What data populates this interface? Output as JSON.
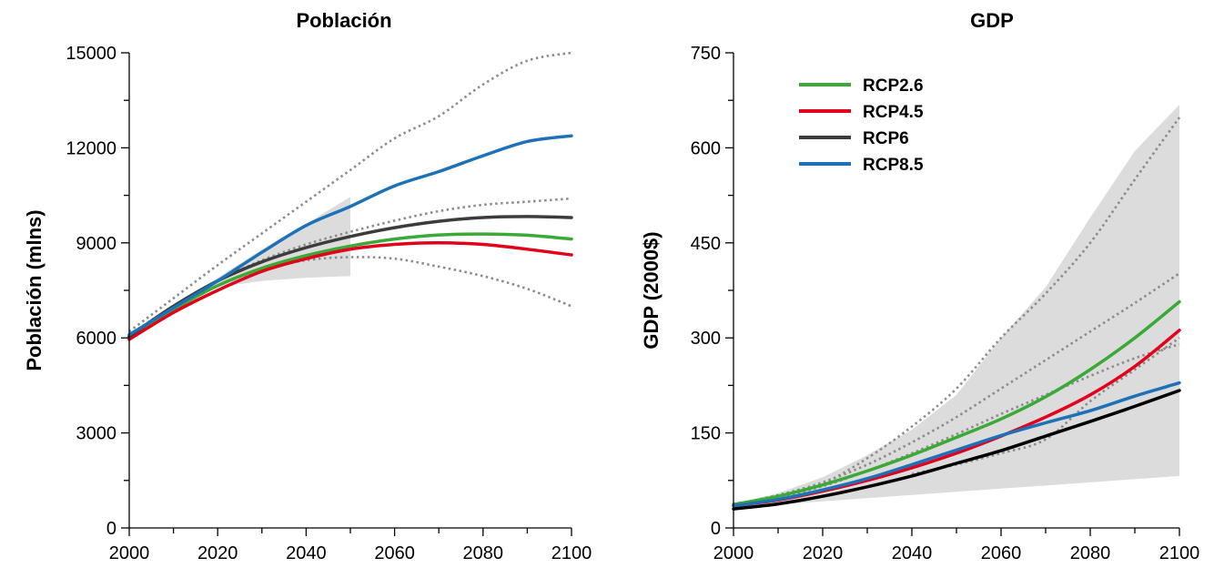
{
  "charts": [
    {
      "title": "Población",
      "ylabel": "Población (mlns)",
      "xticks": [
        2000,
        2020,
        2040,
        2060,
        2080,
        2100
      ],
      "yticks": [
        0,
        3000,
        6000,
        9000,
        12000,
        15000
      ],
      "xticks_label": [
        "2000",
        "2020",
        "2040",
        "2060",
        "2080",
        "2100"
      ],
      "yticks_label": [
        "0",
        "3000",
        "6000",
        "9000",
        "12000",
        "15000"
      ]
    },
    {
      "title": "GDP",
      "ylabel": "GDP (2000$)",
      "xticks": [
        2000,
        2020,
        2040,
        2060,
        2080,
        2100
      ],
      "yticks": [
        0,
        150,
        300,
        450,
        600,
        750
      ],
      "xticks_label": [
        "2000",
        "2020",
        "2040",
        "2060",
        "2080",
        "2100"
      ],
      "yticks_label": [
        "0",
        "150",
        "300",
        "450",
        "600",
        "750"
      ]
    }
  ],
  "legend": [
    {
      "label": "RCP2.6",
      "color": "#3aa935"
    },
    {
      "label": "RCP4.5",
      "color": "#e2001a"
    },
    {
      "label": "RCP6",
      "color": "#3c3c3b"
    },
    {
      "label": "RCP8.5",
      "color": "#1d71b8"
    }
  ],
  "chart_data": [
    {
      "type": "line",
      "title": "Población",
      "xlabel": "",
      "ylabel": "Población (mlns)",
      "xlim": [
        2000,
        2100
      ],
      "ylim": [
        0,
        15000
      ],
      "grid": false,
      "x": [
        2000,
        2010,
        2020,
        2030,
        2040,
        2050,
        2060,
        2070,
        2080,
        2090,
        2100
      ],
      "series": [
        {
          "name": "RCP2.6",
          "color": "#3aa935",
          "values": [
            6050,
            6900,
            7650,
            8200,
            8600,
            8900,
            9120,
            9250,
            9280,
            9240,
            9120
          ]
        },
        {
          "name": "RCP4.5",
          "color": "#e2001a",
          "values": [
            5950,
            6800,
            7500,
            8100,
            8500,
            8800,
            8950,
            9000,
            8950,
            8800,
            8620
          ]
        },
        {
          "name": "RCP6",
          "color": "#3c3c3b",
          "values": [
            6050,
            7000,
            7800,
            8400,
            8850,
            9200,
            9480,
            9680,
            9800,
            9830,
            9800
          ]
        },
        {
          "name": "RCP8.5",
          "color": "#1d71b8",
          "values": [
            6100,
            6950,
            7800,
            8700,
            9550,
            10150,
            10800,
            11250,
            11750,
            12200,
            12380
          ]
        }
      ],
      "reference_lines": [
        {
          "x": [
            2000,
            2010,
            2020,
            2030,
            2040,
            2050,
            2060,
            2070,
            2080,
            2090,
            2100
          ],
          "values": [
            6200,
            7250,
            8300,
            9300,
            10300,
            11300,
            12300,
            13000,
            14000,
            14750,
            15000
          ]
        },
        {
          "x": [
            2000,
            2010,
            2020,
            2030,
            2040,
            2050,
            2060,
            2070,
            2080,
            2090,
            2100
          ],
          "values": [
            6100,
            7000,
            7800,
            8450,
            8950,
            9350,
            9700,
            10000,
            10200,
            10300,
            10400
          ]
        },
        {
          "x": [
            2000,
            2010,
            2020,
            2030,
            2040,
            2050,
            2060,
            2070,
            2080,
            2090,
            2100
          ],
          "values": [
            6000,
            6900,
            7650,
            8150,
            8450,
            8550,
            8500,
            8250,
            7950,
            7550,
            7000
          ]
        }
      ],
      "band": {
        "x": [
          2010,
          2020,
          2030,
          2040,
          2050
        ],
        "upper": [
          7000,
          7900,
          8800,
          9600,
          10450
        ],
        "lower": [
          7000,
          7600,
          7800,
          7900,
          7950
        ]
      }
    },
    {
      "type": "line",
      "title": "GDP",
      "xlabel": "",
      "ylabel": "GDP (2000$)",
      "xlim": [
        2000,
        2100
      ],
      "ylim": [
        0,
        750
      ],
      "grid": false,
      "x": [
        2000,
        2010,
        2020,
        2030,
        2040,
        2050,
        2060,
        2070,
        2080,
        2090,
        2100
      ],
      "series": [
        {
          "name": "RCP2.6",
          "color": "#3aa935",
          "values": [
            37,
            50,
            68,
            90,
            115,
            143,
            172,
            207,
            250,
            300,
            357
          ]
        },
        {
          "name": "RCP4.5",
          "color": "#e2001a",
          "values": [
            35,
            44,
            58,
            75,
            95,
            118,
            145,
            175,
            210,
            255,
            312
          ]
        },
        {
          "name": "RCP6",
          "color": "#000000",
          "values": [
            30,
            38,
            50,
            65,
            82,
            102,
            122,
            145,
            168,
            192,
            217
          ]
        },
        {
          "name": "RCP8.5",
          "color": "#1d71b8",
          "values": [
            35,
            45,
            60,
            78,
            100,
            123,
            146,
            166,
            185,
            208,
            229
          ]
        }
      ],
      "reference_lines": [
        {
          "x": [
            2000,
            2010,
            2020,
            2030,
            2040,
            2050,
            2060,
            2070,
            2080,
            2090,
            2100
          ],
          "values": [
            38,
            50,
            70,
            110,
            160,
            220,
            300,
            370,
            450,
            550,
            648
          ]
        },
        {
          "x": [
            2000,
            2010,
            2020,
            2030,
            2040,
            2050,
            2060,
            2070,
            2080,
            2090,
            2100
          ],
          "values": [
            37,
            52,
            72,
            100,
            135,
            175,
            220,
            265,
            310,
            355,
            402
          ]
        },
        {
          "x": [
            2000,
            2010,
            2020,
            2030,
            2040,
            2050,
            2060,
            2070,
            2080,
            2090,
            2100
          ],
          "values": [
            36,
            48,
            66,
            90,
            118,
            148,
            180,
            210,
            240,
            268,
            290
          ]
        },
        {
          "x": [
            2040,
            2050,
            2060,
            2070,
            2080,
            2090,
            2100
          ],
          "values": [
            85,
            100,
            118,
            140,
            200,
            250,
            300
          ]
        }
      ],
      "band": {
        "x": [
          2000,
          2010,
          2020,
          2030,
          2040,
          2050,
          2060,
          2070,
          2080,
          2090,
          2100
        ],
        "upper": [
          38,
          55,
          80,
          115,
          155,
          210,
          300,
          380,
          490,
          595,
          668
        ],
        "lower": [
          33,
          37,
          42,
          47,
          52,
          57,
          62,
          67,
          72,
          77,
          82
        ]
      }
    }
  ]
}
